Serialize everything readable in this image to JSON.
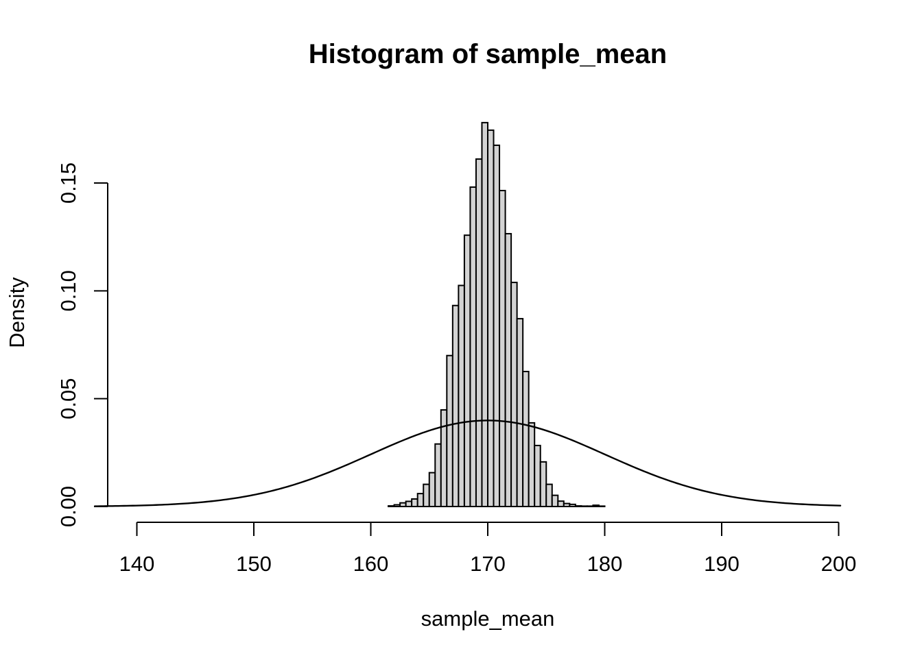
{
  "chart_data": {
    "type": "bar",
    "subtype": "histogram-with-normal-curve",
    "title": "Histogram of sample_mean",
    "xlabel": "sample_mean",
    "ylabel": "Density",
    "x_tick_values": [
      140,
      150,
      160,
      170,
      180,
      190,
      200
    ],
    "x_tick_labels": [
      "140",
      "150",
      "160",
      "170",
      "180",
      "190",
      "200"
    ],
    "y_tick_values": [
      0.0,
      0.05,
      0.1,
      0.15
    ],
    "y_tick_labels": [
      "0.00",
      "0.05",
      "0.10",
      "0.15"
    ],
    "xlim": [
      136.4,
      202.4
    ],
    "ylim": [
      0,
      0.185
    ],
    "grid": false,
    "legend": "none",
    "histogram": {
      "bin_start": 161.5,
      "bin_width": 0.5,
      "densities": [
        0.0003,
        0.0008,
        0.0017,
        0.0024,
        0.0035,
        0.006,
        0.0103,
        0.0157,
        0.029,
        0.0448,
        0.07,
        0.0932,
        0.1025,
        0.1258,
        0.1481,
        0.1611,
        0.178,
        0.1745,
        0.1675,
        0.1465,
        0.1265,
        0.1039,
        0.0871,
        0.0626,
        0.0388,
        0.0283,
        0.0207,
        0.0103,
        0.0052,
        0.0025,
        0.0014,
        0.001,
        0.0003,
        0.0002,
        0.0002,
        0.0006,
        0.0002
      ]
    },
    "overlay_curve": {
      "kind": "normal-density",
      "mean": 170,
      "sd": 10,
      "peak_density": 0.0399,
      "from": 136.4,
      "to": 200.3
    },
    "colors": {
      "bar_fill": "#d3d3d3",
      "bar_stroke": "#000000",
      "curve": "#000000",
      "axis": "#000000",
      "background": "#ffffff"
    }
  }
}
